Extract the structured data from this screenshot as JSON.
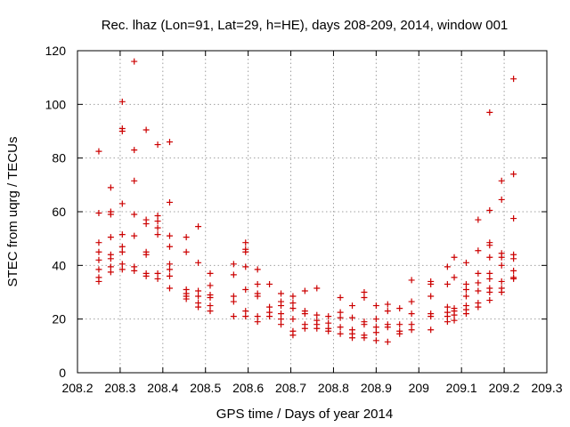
{
  "chart_data": {
    "type": "scatter",
    "title": "Rec. lhaz (Lon=91, Lat=29, h=HE), days 208-209, 2014, window 001",
    "xlabel": "GPS time / Days of year 2014",
    "ylabel": "STEC from uqrg / TECUs",
    "xlim": [
      208.2,
      209.3
    ],
    "ylim": [
      0,
      120
    ],
    "x_ticks": [
      208.2,
      208.3,
      208.4,
      208.5,
      208.6,
      208.7,
      208.8,
      208.9,
      209,
      209.1,
      209.2,
      209.3
    ],
    "x_tick_labels": [
      "208.2",
      "208.3",
      "208.4",
      "208.5",
      "208.6",
      "208.7",
      "208.8",
      "208.9",
      "209",
      "209.1",
      "209.2",
      "209.3"
    ],
    "y_ticks": [
      0,
      20,
      40,
      60,
      80,
      100,
      120
    ],
    "y_tick_labels": [
      "0",
      "20",
      "40",
      "60",
      "80",
      "100",
      "120"
    ],
    "grid": true,
    "marker": "+",
    "marker_color": "#cc0000",
    "points": [
      [
        208.25,
        82.5
      ],
      [
        208.25,
        59.5
      ],
      [
        208.25,
        48.5
      ],
      [
        208.25,
        45
      ],
      [
        208.25,
        42
      ],
      [
        208.25,
        38.5
      ],
      [
        208.25,
        35.5
      ],
      [
        208.25,
        34
      ],
      [
        208.278,
        69
      ],
      [
        208.278,
        60
      ],
      [
        208.278,
        59
      ],
      [
        208.278,
        50.5
      ],
      [
        208.278,
        44
      ],
      [
        208.278,
        42.5
      ],
      [
        208.278,
        39.5
      ],
      [
        208.278,
        37.5
      ],
      [
        208.305,
        101
      ],
      [
        208.305,
        91
      ],
      [
        208.305,
        90
      ],
      [
        208.305,
        63
      ],
      [
        208.305,
        51.5
      ],
      [
        208.305,
        47
      ],
      [
        208.305,
        45
      ],
      [
        208.305,
        40.5
      ],
      [
        208.305,
        38.5
      ],
      [
        208.333,
        116
      ],
      [
        208.333,
        83
      ],
      [
        208.333,
        71.5
      ],
      [
        208.333,
        59
      ],
      [
        208.333,
        51
      ],
      [
        208.333,
        39.5
      ],
      [
        208.333,
        38
      ],
      [
        208.361,
        90.5
      ],
      [
        208.361,
        57
      ],
      [
        208.361,
        55.5
      ],
      [
        208.361,
        45
      ],
      [
        208.361,
        44
      ],
      [
        208.361,
        37
      ],
      [
        208.361,
        36
      ],
      [
        208.388,
        85
      ],
      [
        208.388,
        58.5
      ],
      [
        208.388,
        56.5
      ],
      [
        208.388,
        54
      ],
      [
        208.388,
        51.5
      ],
      [
        208.388,
        37
      ],
      [
        208.388,
        35
      ],
      [
        208.416,
        86
      ],
      [
        208.416,
        63.5
      ],
      [
        208.416,
        51
      ],
      [
        208.416,
        47
      ],
      [
        208.416,
        40.5
      ],
      [
        208.416,
        38.5
      ],
      [
        208.416,
        36
      ],
      [
        208.416,
        31.5
      ],
      [
        208.455,
        50.5
      ],
      [
        208.455,
        45
      ],
      [
        208.455,
        31
      ],
      [
        208.455,
        29.5
      ],
      [
        208.455,
        28.5
      ],
      [
        208.455,
        27.5
      ],
      [
        208.483,
        54.5
      ],
      [
        208.483,
        41
      ],
      [
        208.483,
        30.5
      ],
      [
        208.483,
        28.5
      ],
      [
        208.483,
        26
      ],
      [
        208.483,
        24.5
      ],
      [
        208.511,
        37
      ],
      [
        208.511,
        32.5
      ],
      [
        208.511,
        29
      ],
      [
        208.511,
        28
      ],
      [
        208.511,
        25
      ],
      [
        208.511,
        23
      ],
      [
        208.566,
        40.5
      ],
      [
        208.566,
        36.5
      ],
      [
        208.566,
        28.5
      ],
      [
        208.566,
        26.5
      ],
      [
        208.566,
        21
      ],
      [
        208.594,
        48.5
      ],
      [
        208.594,
        46
      ],
      [
        208.594,
        45
      ],
      [
        208.594,
        39.5
      ],
      [
        208.594,
        31
      ],
      [
        208.594,
        23
      ],
      [
        208.594,
        21
      ],
      [
        208.622,
        38.5
      ],
      [
        208.622,
        33
      ],
      [
        208.622,
        29.5
      ],
      [
        208.622,
        28.5
      ],
      [
        208.622,
        21
      ],
      [
        208.622,
        19
      ],
      [
        208.65,
        33
      ],
      [
        208.65,
        24.5
      ],
      [
        208.65,
        22.5
      ],
      [
        208.65,
        21
      ],
      [
        208.677,
        29.5
      ],
      [
        208.677,
        26.5
      ],
      [
        208.677,
        25
      ],
      [
        208.677,
        22
      ],
      [
        208.677,
        20
      ],
      [
        208.677,
        18
      ],
      [
        208.705,
        28.5
      ],
      [
        208.705,
        26
      ],
      [
        208.705,
        24
      ],
      [
        208.705,
        20
      ],
      [
        208.705,
        15.5
      ],
      [
        208.705,
        14
      ],
      [
        208.733,
        30.5
      ],
      [
        208.733,
        23
      ],
      [
        208.733,
        22
      ],
      [
        208.733,
        18
      ],
      [
        208.733,
        16.5
      ],
      [
        208.761,
        31.5
      ],
      [
        208.761,
        21.5
      ],
      [
        208.761,
        19.5
      ],
      [
        208.761,
        18
      ],
      [
        208.761,
        16.5
      ],
      [
        208.788,
        21
      ],
      [
        208.788,
        18.5
      ],
      [
        208.788,
        16.5
      ],
      [
        208.788,
        15.5
      ],
      [
        208.816,
        28
      ],
      [
        208.816,
        22.5
      ],
      [
        208.816,
        20.5
      ],
      [
        208.816,
        17
      ],
      [
        208.816,
        14.5
      ],
      [
        208.844,
        25
      ],
      [
        208.844,
        20.5
      ],
      [
        208.844,
        16
      ],
      [
        208.844,
        14.5
      ],
      [
        208.844,
        13
      ],
      [
        208.872,
        30
      ],
      [
        208.872,
        28
      ],
      [
        208.872,
        19
      ],
      [
        208.872,
        18
      ],
      [
        208.872,
        14
      ],
      [
        208.872,
        13
      ],
      [
        208.9,
        25
      ],
      [
        208.9,
        20
      ],
      [
        208.9,
        17
      ],
      [
        208.9,
        15
      ],
      [
        208.9,
        12
      ],
      [
        208.927,
        25.5
      ],
      [
        208.927,
        23
      ],
      [
        208.927,
        18
      ],
      [
        208.927,
        17
      ],
      [
        208.927,
        11.5
      ],
      [
        208.955,
        24
      ],
      [
        208.955,
        18
      ],
      [
        208.955,
        15.5
      ],
      [
        208.955,
        14.5
      ],
      [
        208.983,
        34.5
      ],
      [
        208.983,
        26.5
      ],
      [
        208.983,
        22
      ],
      [
        208.983,
        18
      ],
      [
        208.983,
        16
      ],
      [
        209.028,
        34
      ],
      [
        209.028,
        33
      ],
      [
        209.028,
        28.5
      ],
      [
        209.028,
        22
      ],
      [
        209.028,
        21
      ],
      [
        209.028,
        16
      ],
      [
        209.067,
        39.5
      ],
      [
        209.067,
        33
      ],
      [
        209.067,
        24.5
      ],
      [
        209.067,
        22.5
      ],
      [
        209.067,
        21
      ],
      [
        209.067,
        19
      ],
      [
        209.083,
        43
      ],
      [
        209.083,
        35.5
      ],
      [
        209.083,
        24
      ],
      [
        209.083,
        23
      ],
      [
        209.083,
        21.5
      ],
      [
        209.083,
        19.5
      ],
      [
        209.111,
        41
      ],
      [
        209.111,
        33
      ],
      [
        209.111,
        31
      ],
      [
        209.111,
        28.5
      ],
      [
        209.111,
        25
      ],
      [
        209.111,
        23.5
      ],
      [
        209.111,
        22
      ],
      [
        209.139,
        57
      ],
      [
        209.139,
        45.5
      ],
      [
        209.139,
        37
      ],
      [
        209.139,
        33.5
      ],
      [
        209.139,
        30.5
      ],
      [
        209.139,
        26
      ],
      [
        209.139,
        24.5
      ],
      [
        209.166,
        97
      ],
      [
        209.166,
        60.5
      ],
      [
        209.166,
        48.5
      ],
      [
        209.166,
        47.5
      ],
      [
        209.166,
        43
      ],
      [
        209.166,
        37
      ],
      [
        209.166,
        35
      ],
      [
        209.166,
        31.5
      ],
      [
        209.166,
        30
      ],
      [
        209.166,
        27
      ],
      [
        209.194,
        71.5
      ],
      [
        209.194,
        64.5
      ],
      [
        209.194,
        44.5
      ],
      [
        209.194,
        43
      ],
      [
        209.194,
        40
      ],
      [
        209.194,
        34
      ],
      [
        209.194,
        31.5
      ],
      [
        209.194,
        30
      ],
      [
        209.222,
        109.5
      ],
      [
        209.222,
        74
      ],
      [
        209.222,
        57.5
      ],
      [
        209.222,
        44
      ],
      [
        209.222,
        42.5
      ],
      [
        209.222,
        38
      ],
      [
        209.222,
        35.5
      ],
      [
        209.222,
        35
      ]
    ]
  }
}
